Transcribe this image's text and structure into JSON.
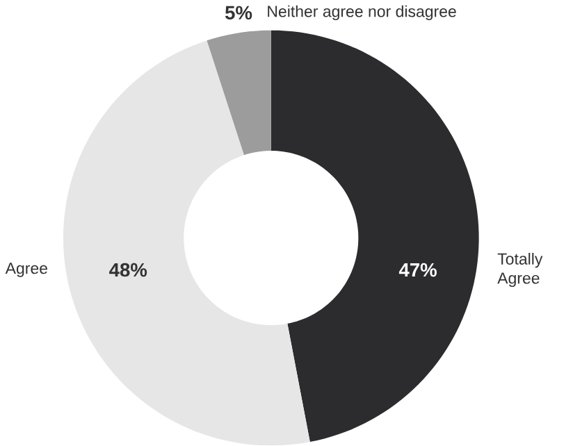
{
  "chart_data": {
    "type": "donut",
    "categories": [
      "Totally Agree",
      "Agree",
      "Neither agree nor disagree"
    ],
    "values": [
      47,
      48,
      5
    ],
    "colors": [
      "#2c2c2f",
      "#e6e6e6",
      "#9c9c9c"
    ],
    "value_labels": [
      "47%",
      "48%",
      "5%"
    ]
  }
}
